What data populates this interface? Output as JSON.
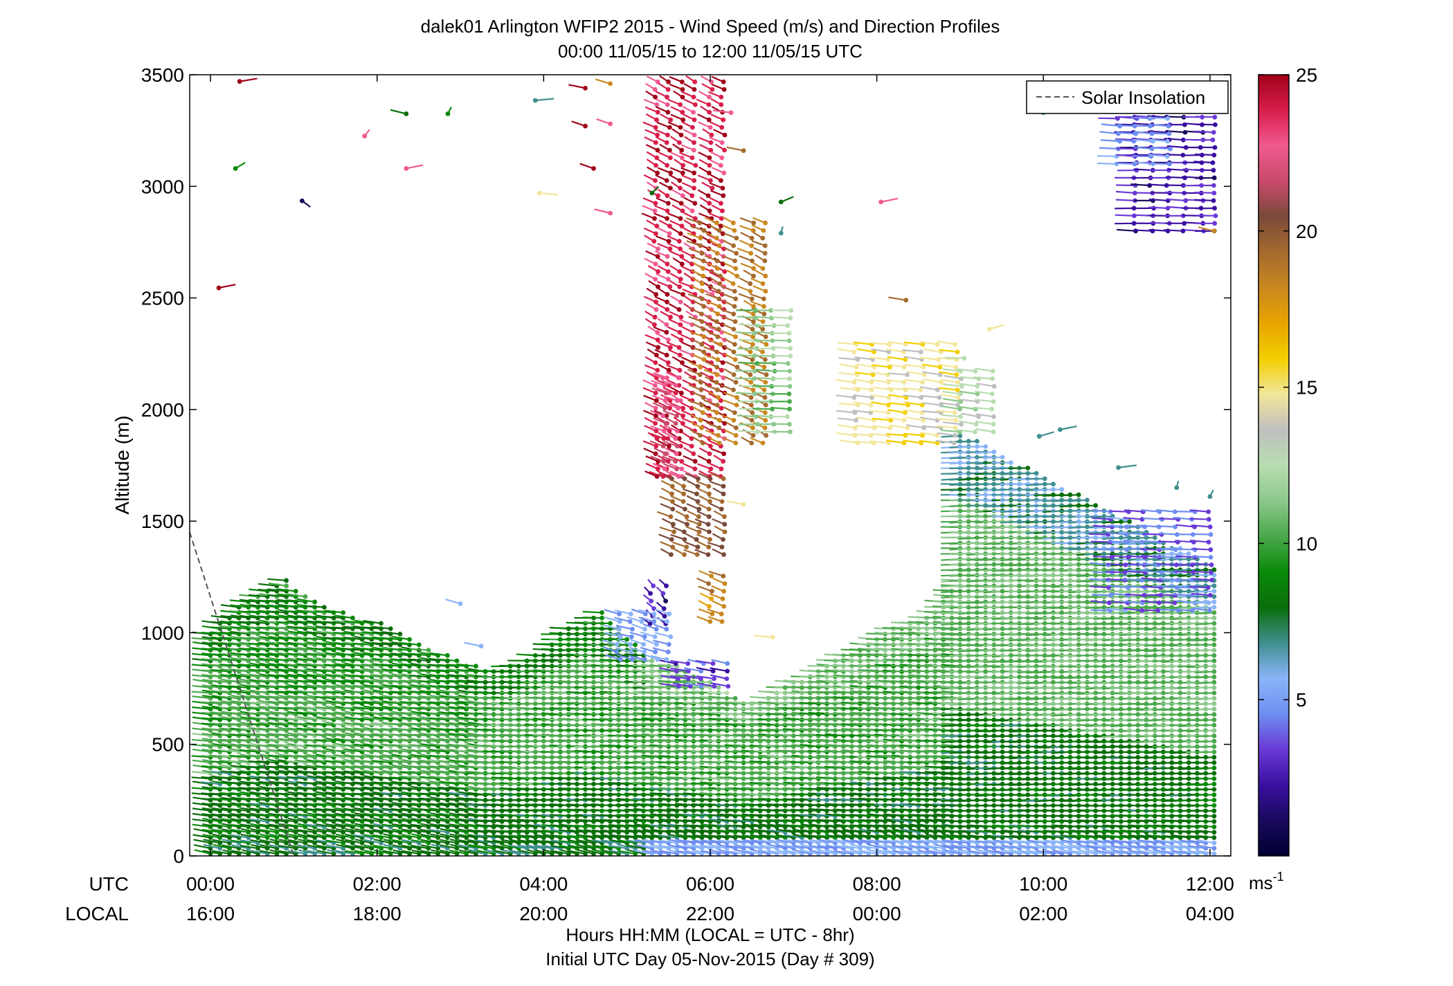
{
  "chart_data": {
    "type": "scatter",
    "title": "dalek01 Arlington WFIP2 2015 - Wind Speed (m/s) and Direction Profiles",
    "subtitle": "00:00 11/05/15 to 12:00 11/05/15  UTC",
    "ylabel": "Altitude (m)",
    "xlabel": "Hours HH:MM  (LOCAL = UTC - 8hr)",
    "xlabel2": "Initial UTC Day 05-Nov-2015 (Day # 309)",
    "xlim": [
      -0.25,
      12.25
    ],
    "ylim": [
      0,
      3500
    ],
    "yticks": [
      0,
      500,
      1000,
      1500,
      2000,
      2500,
      3000,
      3500
    ],
    "xticks": [
      0,
      2,
      4,
      6,
      8,
      10,
      12
    ],
    "xtick_labels_utc": [
      "00:00",
      "02:00",
      "04:00",
      "06:00",
      "08:00",
      "10:00",
      "12:00"
    ],
    "xtick_labels_local": [
      "16:00",
      "18:00",
      "20:00",
      "22:00",
      "00:00",
      "02:00",
      "04:00"
    ],
    "row_label_utc": "UTC",
    "row_label_local": "LOCAL",
    "legend": {
      "entry": "Solar Insolation",
      "placement": "top-right"
    },
    "solar_insolation": {
      "x": [
        -0.25,
        1.0
      ],
      "y": [
        1450,
        0
      ]
    },
    "colorbar": {
      "range": [
        0,
        25
      ],
      "ticks": [
        5,
        10,
        15,
        20,
        25
      ],
      "unit": "ms",
      "unit_exp": "-1",
      "colors": [
        "#000033",
        "#1a0a5e",
        "#3a0fa0",
        "#6a3ad6",
        "#6e8ef0",
        "#8ab4f8",
        "#3f8f8f",
        "#0a6e0a",
        "#0a8a0a",
        "#4aa84a",
        "#8cc88c",
        "#b8ddb0",
        "#bfbfbf",
        "#f3e69a",
        "#f2d000",
        "#e8a400",
        "#c98820",
        "#a56a2e",
        "#7a4a3a",
        "#c94a6a",
        "#f05a90",
        "#d81e4a",
        "#a00018"
      ]
    },
    "wind_field_note": "",
    "profiles": [
      {
        "t0": 0.0,
        "t1": 3.3,
        "top": [
          1000,
          1050,
          1080,
          1120,
          1150,
          1180,
          1200,
          1220,
          1240,
          1200,
          1170,
          1150,
          1120,
          1100,
          1100,
          1080,
          1060,
          1050,
          1050,
          1030,
          1000,
          980,
          960,
          940,
          920,
          900,
          880,
          860,
          850,
          840
        ],
        "dir": -72,
        "speed": [
          7.5,
          8.5,
          9.5,
          10.5,
          8
        ]
      },
      {
        "t0": 3.3,
        "t1": 5.3,
        "top": [
          840,
          840,
          840,
          850,
          860,
          880,
          900,
          920,
          960,
          1000,
          1020,
          1040,
          1060,
          1080,
          1100,
          1050,
          1020,
          980,
          950,
          900,
          880
        ],
        "dir": -85,
        "speed": [
          7.5,
          8.5,
          9.5,
          11,
          8
        ]
      },
      {
        "t0": 5.3,
        "t1": 9.0,
        "top": [
          880,
          870,
          860,
          850,
          840,
          820,
          800,
          780,
          760,
          740,
          720,
          700,
          690,
          700,
          720,
          740,
          760,
          780,
          800,
          820,
          840,
          860,
          880,
          900,
          920,
          940,
          960,
          980,
          1000,
          1020,
          1040,
          1050,
          1060,
          1080,
          1100,
          1150,
          1200,
          1250
        ],
        "dir": -80,
        "speed": [
          7.5,
          8.5,
          9.5,
          11,
          10
        ]
      },
      {
        "t0": 9.0,
        "t1": 12.05,
        "top": [
          1900,
          1880,
          1860,
          1840,
          1820,
          1800,
          1780,
          1760,
          1740,
          1720,
          1700,
          1680,
          1660,
          1640,
          1620,
          1600,
          1580,
          1560,
          1540,
          1520,
          1500,
          1480,
          1460,
          1440,
          1420,
          1400,
          1380,
          1360,
          1340,
          1320,
          1300
        ],
        "dir": -95,
        "speed": [
          7.5,
          8.5,
          10,
          11.5,
          6
        ]
      }
    ],
    "clusters": [
      {
        "t": [
          5.35,
          5.5,
          5.65,
          5.8,
          6.0,
          6.15
        ],
        "h0": 1700,
        "h1": 3480,
        "speed": 23.5,
        "dir": -35
      },
      {
        "t": [
          5.55,
          5.7,
          5.85,
          6.0,
          6.15
        ],
        "h0": 1350,
        "h1": 1700,
        "speed": 19.5,
        "dir": -40
      },
      {
        "t": [
          5.45,
          5.6
        ],
        "h0": 1700,
        "h1": 2150,
        "speed": 22,
        "dir": -40
      },
      {
        "t": [
          5.9,
          6.1,
          6.3,
          6.5,
          6.65
        ],
        "h0": 1850,
        "h1": 2850,
        "speed": 18.5,
        "dir": -38
      },
      {
        "t": [
          6.55,
          6.75,
          6.95
        ],
        "h0": 1900,
        "h1": 2450,
        "speed": 11.5,
        "dir": -85
      },
      {
        "t": [
          7.75,
          7.95,
          8.15,
          8.35,
          8.55,
          8.75,
          8.95
        ],
        "h0": 1850,
        "h1": 2300,
        "speed": 14.5,
        "dir": -70
      },
      {
        "t": [
          9.0,
          9.2,
          9.4
        ],
        "h0": 1900,
        "h1": 2200,
        "speed": 12.5,
        "dir": -70
      },
      {
        "t": [
          6.0,
          6.15
        ],
        "h0": 1050,
        "h1": 1270,
        "speed": 18,
        "dir": -40
      },
      {
        "t": [
          5.3,
          5.45
        ],
        "h0": 1040,
        "h1": 1240,
        "speed": 3,
        "dir": -20
      },
      {
        "t": [
          10.8,
          11.0,
          11.2,
          11.4,
          11.6,
          11.8,
          12.0
        ],
        "h0": 1100,
        "h1": 1550,
        "speed": 4.5,
        "dir": -80
      },
      {
        "t": [
          11.1,
          11.3,
          11.5,
          11.7,
          11.9,
          12.05
        ],
        "h0": 2800,
        "h1": 3450,
        "speed": 3,
        "dir": -85
      },
      {
        "t": [
          10.9,
          11.1,
          11.3,
          11.5
        ],
        "h0": 3100,
        "h1": 3450,
        "speed": 5,
        "dir": -80
      },
      {
        "t": [
          5.6,
          5.75,
          5.9,
          6.05,
          6.2
        ],
        "h0": 760,
        "h1": 880,
        "speed": 4,
        "dir": -60
      },
      {
        "t": [
          4.9,
          5.05,
          5.2,
          5.35,
          5.5
        ],
        "h0": 880,
        "h1": 1100,
        "speed": 5.5,
        "dir": -50
      }
    ],
    "scattered": [
      {
        "t": 0.35,
        "h": 3470,
        "speed": 24,
        "dir": 65
      },
      {
        "t": 0.3,
        "h": 3080,
        "speed": 9,
        "dir": 30
      },
      {
        "t": 0.1,
        "h": 2545,
        "speed": 24,
        "dir": 60
      },
      {
        "t": 1.1,
        "h": 2935,
        "speed": 2,
        "dir": 155
      },
      {
        "t": 1.85,
        "h": 3225,
        "speed": 22,
        "dir": 15
      },
      {
        "t": 2.35,
        "h": 3080,
        "speed": 22,
        "dir": 60
      },
      {
        "t": 2.35,
        "h": 3325,
        "speed": 8,
        "dir": -55
      },
      {
        "t": 2.85,
        "h": 3325,
        "speed": 9,
        "dir": 10
      },
      {
        "t": 3.9,
        "h": 3385,
        "speed": 7.5,
        "dir": 75
      },
      {
        "t": 3.95,
        "h": 2970,
        "speed": 15,
        "dir": 105
      },
      {
        "t": 4.5,
        "h": 3440,
        "speed": 24,
        "dir": -60
      },
      {
        "t": 4.5,
        "h": 3270,
        "speed": 24,
        "dir": -45
      },
      {
        "t": 4.6,
        "h": 3080,
        "speed": 24,
        "dir": -45
      },
      {
        "t": 4.8,
        "h": 3460,
        "speed": 18,
        "dir": -50
      },
      {
        "t": 4.8,
        "h": 3280,
        "speed": 22,
        "dir": -45
      },
      {
        "t": 4.8,
        "h": 2880,
        "speed": 22,
        "dir": -55
      },
      {
        "t": 5.3,
        "h": 2970,
        "speed": 8,
        "dir": 20
      },
      {
        "t": 6.25,
        "h": 3330,
        "speed": 22,
        "dir": -70
      },
      {
        "t": 6.4,
        "h": 3160,
        "speed": 19,
        "dir": -60
      },
      {
        "t": 6.85,
        "h": 2930,
        "speed": 8,
        "dir": 40
      },
      {
        "t": 6.85,
        "h": 2790,
        "speed": 7.5,
        "dir": 5
      },
      {
        "t": 8.05,
        "h": 2930,
        "speed": 22,
        "dir": 60
      },
      {
        "t": 9.05,
        "h": 2230,
        "speed": 12.5,
        "dir": -85
      },
      {
        "t": 9.35,
        "h": 2360,
        "speed": 15,
        "dir": 50
      },
      {
        "t": 8.35,
        "h": 2490,
        "speed": 19,
        "dir": -65
      },
      {
        "t": 9.95,
        "h": 1880,
        "speed": 7.5,
        "dir": 50
      },
      {
        "t": 10.2,
        "h": 1910,
        "speed": 7.5,
        "dir": 60
      },
      {
        "t": 10.9,
        "h": 1740,
        "speed": 7.5,
        "dir": 70
      },
      {
        "t": 10.0,
        "h": 3330,
        "speed": 7.5,
        "dir": 30
      },
      {
        "t": 12.05,
        "h": 2800,
        "speed": 18,
        "dir": -55
      },
      {
        "t": 12.0,
        "h": 1610,
        "speed": 7.5,
        "dir": 10
      },
      {
        "t": 11.6,
        "h": 1650,
        "speed": 7.5,
        "dir": 5
      },
      {
        "t": 3.0,
        "h": 1130,
        "speed": 6,
        "dir": -50
      },
      {
        "t": 3.25,
        "h": 940,
        "speed": 5.5,
        "dir": -60
      },
      {
        "t": 6.75,
        "h": 980,
        "speed": 15,
        "dir": -75
      },
      {
        "t": 6.4,
        "h": 1575,
        "speed": 15,
        "dir": -60
      }
    ]
  }
}
